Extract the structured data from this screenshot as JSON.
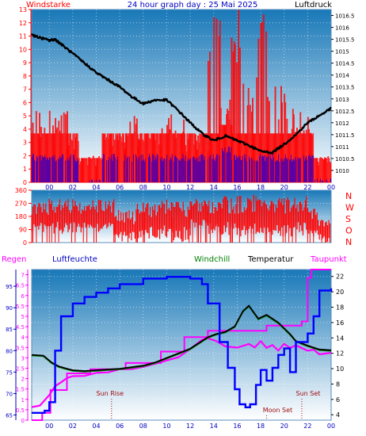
{
  "colors": {
    "wind": "#ff0000",
    "gust_bar": "#ff0000",
    "wind_bar": "#0000ff",
    "pressure": "#000000",
    "direction": "#ff0000",
    "rain": "#ff0000",
    "humidity": "#0000ff",
    "windchill": "#008000",
    "temperature": "#000000",
    "dewpoint": "#ff00ff",
    "tick_text_blue": "#0000c0",
    "grad_top": "#1878b8",
    "grad_bottom": "#ffffff"
  },
  "header": {
    "left": "Windstarke",
    "center": "24 hour graph day : 25 Mai 2025",
    "right": "Luftdruck"
  },
  "legend2": {
    "rain": "Regen",
    "humidity": "Luftfeuchte",
    "windchill": "Windchill",
    "temperature": "Temperatur",
    "dewpoint": "Taupunkt"
  },
  "annotations": {
    "sunrise": "Sun Rise",
    "sunset": "Sun Set",
    "moonset": "Moon Set"
  },
  "chart_data": [
    {
      "type": "bar+line",
      "name_left": "Windstarke",
      "name_right": "Luftdruck",
      "x_ticks": [
        "00",
        "02",
        "04",
        "06",
        "08",
        "10",
        "12",
        "14",
        "16",
        "18",
        "20",
        "22",
        "00"
      ],
      "x_range_hours": [
        -1.5,
        24
      ],
      "left_axis": {
        "range": [
          0,
          13
        ],
        "ticks": [
          "0",
          "1",
          "2",
          "3",
          "4",
          "5",
          "6",
          "7",
          "8",
          "9",
          "10",
          "11",
          "12",
          "13"
        ]
      },
      "right_axis": {
        "range": [
          1009.5,
          1016.75
        ],
        "ticks": [
          "1010",
          "1010.5",
          "1011",
          "1011.5",
          "1012",
          "1012.5",
          "1013",
          "1013.5",
          "1014",
          "1014.5",
          "1015",
          "1015.5",
          "1016",
          "1016.5"
        ]
      },
      "pressure": {
        "x": [
          -1.5,
          -1,
          0,
          0.5,
          1,
          2,
          3,
          4,
          5,
          6,
          7,
          8,
          9,
          10,
          11,
          12,
          13,
          14,
          15,
          16,
          17,
          18,
          19,
          20,
          21,
          22,
          23,
          24
        ],
        "y": [
          1015.7,
          1015.6,
          1015.45,
          1015.5,
          1015.3,
          1014.9,
          1014.5,
          1014.1,
          1013.8,
          1013.5,
          1013.1,
          1012.8,
          1012.95,
          1012.95,
          1012.5,
          1012.0,
          1011.55,
          1011.25,
          1011.45,
          1011.25,
          1011.05,
          1010.8,
          1010.75,
          1011.1,
          1011.5,
          1012.0,
          1012.3,
          1012.6
        ]
      },
      "wind_segments": [
        {
          "from": -1.5,
          "to": 1.5,
          "base": 1.85,
          "gust": 5.5
        },
        {
          "from": 1.5,
          "to": 2.5,
          "base": 1.85,
          "gust": 3.7
        },
        {
          "from": 2.5,
          "to": 4.5,
          "base": 0.0,
          "gust": 2.0
        },
        {
          "from": 4.5,
          "to": 6.5,
          "base": 1.85,
          "gust": 3.7
        },
        {
          "from": 6.5,
          "to": 7.5,
          "base": 1.85,
          "gust": 5.5
        },
        {
          "from": 7.5,
          "to": 9.5,
          "base": 1.85,
          "gust": 3.7
        },
        {
          "from": 9.5,
          "to": 11.5,
          "base": 1.85,
          "gust": 5.5
        },
        {
          "from": 11.5,
          "to": 13.5,
          "base": 1.85,
          "gust": 3.7
        },
        {
          "from": 13.5,
          "to": 14.5,
          "base": 1.85,
          "gust": 13.0
        },
        {
          "from": 14.5,
          "to": 15.5,
          "base": 2.5,
          "gust": 7.4
        },
        {
          "from": 15.5,
          "to": 16.5,
          "base": 1.85,
          "gust": 13.0
        },
        {
          "from": 16.5,
          "to": 17.5,
          "base": 1.85,
          "gust": 7.4
        },
        {
          "from": 17.5,
          "to": 18.5,
          "base": 1.85,
          "gust": 13.0
        },
        {
          "from": 18.5,
          "to": 20.5,
          "base": 1.85,
          "gust": 7.4
        },
        {
          "from": 20.5,
          "to": 22.5,
          "base": 1.85,
          "gust": 5.5
        },
        {
          "from": 22.5,
          "to": 24.0,
          "base": 0.0,
          "gust": 2.0
        }
      ]
    },
    {
      "type": "area",
      "name": "wind direction",
      "x_range_hours": [
        -1.5,
        24
      ],
      "y_range": [
        0,
        360
      ],
      "y_ticks": [
        "0",
        "90",
        "180",
        "270",
        "360"
      ],
      "right_labels": [
        "N",
        "W",
        "S",
        "O",
        "N"
      ],
      "segments": [
        {
          "from": -1.5,
          "to": 5.5,
          "low": 60,
          "high": 300
        },
        {
          "from": 5.5,
          "to": 7.5,
          "low": 0,
          "high": 230
        },
        {
          "from": 7.5,
          "to": 10.5,
          "low": 20,
          "high": 300
        },
        {
          "from": 10.5,
          "to": 12.0,
          "low": 0,
          "high": 310
        },
        {
          "from": 12.0,
          "to": 13.5,
          "low": 100,
          "high": 300
        },
        {
          "from": 13.5,
          "to": 22.0,
          "low": 40,
          "high": 330
        },
        {
          "from": 22.0,
          "to": 23.0,
          "low": 40,
          "high": 250
        },
        {
          "from": 23.0,
          "to": 24.0,
          "low": 0,
          "high": 180
        }
      ]
    },
    {
      "type": "line",
      "name_left_outer": "Regen",
      "name_left_inner": "Luftfeuchte",
      "x_range_hours": [
        -1.5,
        24
      ],
      "rain_axis": {
        "range": [
          0,
          7.25
        ],
        "ticks": [
          "0",
          "0.5",
          "1",
          "1.5",
          "2",
          "2.5",
          "3",
          "3.5",
          "4",
          "4.5",
          "5",
          "5.5",
          "6",
          "6.5",
          "7"
        ]
      },
      "humidity_axis": {
        "range": [
          63.8,
          98.9
        ],
        "ticks": [
          "65",
          "70",
          "75",
          "80",
          "85",
          "90",
          "95"
        ]
      },
      "temp_axis": {
        "range": [
          3.3,
          22.9
        ],
        "ticks": [
          "4",
          "6",
          "8",
          "10",
          "12",
          "14",
          "16",
          "18",
          "20",
          "22"
        ]
      },
      "humidity": {
        "x": [
          -1.5,
          -0.8,
          -0.4,
          0,
          0.5,
          1,
          2,
          3,
          4,
          5,
          6,
          8,
          10,
          11,
          12,
          13,
          13.5,
          14.5,
          15.2,
          15.8,
          16.2,
          16.7,
          17.1,
          17.6,
          18.0,
          18.5,
          19.0,
          19.5,
          20.0,
          20.5,
          21.0,
          22.0,
          22.5,
          23.0,
          24.0
        ],
        "y": [
          65.5,
          65.5,
          66.0,
          68.0,
          80.0,
          88.0,
          91.0,
          92.5,
          93.5,
          94.5,
          95.5,
          96.8,
          97.2,
          97.2,
          96.8,
          95.5,
          91.0,
          82.0,
          76.0,
          71.0,
          67.5,
          66.8,
          67.5,
          72.0,
          75.5,
          73.0,
          76.0,
          79.0,
          80.5,
          75.0,
          82.0,
          84.0,
          88.0,
          94.0,
          94.5
        ]
      },
      "temperature": {
        "x": [
          -1.5,
          -0.5,
          0.2,
          0.8,
          1.5,
          2,
          3,
          4,
          5,
          6,
          7,
          8,
          9,
          10,
          11,
          12,
          12.5,
          13,
          13.5,
          14.2,
          15,
          15.8,
          16.5,
          17,
          17.8,
          18.5,
          19.5,
          20.5,
          21,
          22,
          23,
          24
        ],
        "y": [
          11.8,
          11.7,
          10.8,
          10.3,
          10.0,
          9.8,
          9.7,
          9.8,
          9.9,
          10.0,
          10.2,
          10.4,
          10.8,
          11.4,
          12.0,
          12.6,
          13.1,
          13.6,
          14.1,
          14.5,
          14.8,
          15.5,
          17.5,
          18.2,
          16.5,
          17.0,
          16.0,
          14.5,
          13.6,
          13.0,
          12.5,
          12.4
        ]
      },
      "windchill": {
        "x": [
          -1.5,
          -0.5,
          0.2,
          0.8,
          1.5,
          2,
          3,
          4,
          5,
          6,
          7,
          8,
          9,
          10,
          11,
          12,
          12.5,
          13,
          13.5,
          14.2,
          15,
          15.8,
          16.5,
          17,
          17.8,
          18.5,
          19.5,
          20.5,
          21,
          22,
          23,
          24
        ],
        "y": [
          11.7,
          11.6,
          10.7,
          10.2,
          9.9,
          9.7,
          9.6,
          9.7,
          9.8,
          9.9,
          10.1,
          10.3,
          10.7,
          11.3,
          11.9,
          12.5,
          13.0,
          13.5,
          14.0,
          14.4,
          14.7,
          15.4,
          17.4,
          18.1,
          16.4,
          16.9,
          15.9,
          14.4,
          13.5,
          12.9,
          12.4,
          12.3
        ]
      },
      "dewpoint": {
        "x": [
          -1.5,
          -0.8,
          0,
          0.5,
          1,
          1.5,
          2,
          3,
          4,
          5,
          6,
          7,
          8,
          9,
          10,
          11,
          12,
          13,
          13.5,
          14.2,
          15,
          16,
          17,
          17.5,
          18,
          18.5,
          19,
          19.5,
          20,
          20.5,
          21,
          22,
          22.5,
          23,
          24
        ],
        "y": [
          4.9,
          5.2,
          6.5,
          7.8,
          8.3,
          8.7,
          9.0,
          9.2,
          9.4,
          9.6,
          9.8,
          10.0,
          10.2,
          10.5,
          11.0,
          11.5,
          12.5,
          13.6,
          14.1,
          13.5,
          13.0,
          12.8,
          13.3,
          12.7,
          13.5,
          12.6,
          13.0,
          12.3,
          13.3,
          12.8,
          13.0,
          12.4,
          12.5,
          12.0,
          12.2
        ]
      },
      "rain_total": {
        "x": [
          -1.5,
          -0.6,
          -0.6,
          0.1,
          0.1,
          1.5,
          1.5,
          3.5,
          3.5,
          6.5,
          6.5,
          9.5,
          9.5,
          11.5,
          11.5,
          13.5,
          13.5,
          18.5,
          18.5,
          21.5,
          21.5,
          22.0,
          22.3,
          24.0
        ],
        "y": [
          0.0,
          0.0,
          0.35,
          0.35,
          1.45,
          1.45,
          2.25,
          2.25,
          2.45,
          2.45,
          2.75,
          2.75,
          3.3,
          3.3,
          4.0,
          4.0,
          4.3,
          4.3,
          4.55,
          4.55,
          4.75,
          6.85,
          7.25,
          7.25
        ]
      },
      "events_hours": {
        "sunrise": 5.3,
        "sunset": 21.5,
        "moonset": 18.5
      }
    }
  ]
}
